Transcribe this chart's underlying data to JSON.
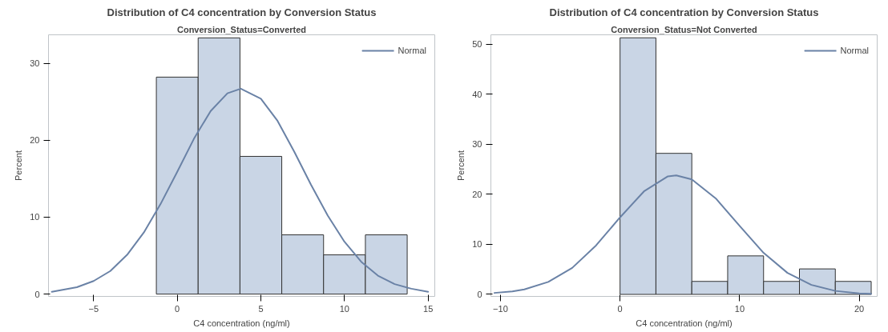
{
  "chart_data": [
    {
      "type": "histogram",
      "title": "Distribution of C4 concentration by Conversion Status",
      "subtitle": "Conversion_Status=Converted",
      "xlabel": "C4 concentration (ng/ml)",
      "ylabel": "Percent",
      "bins": [
        -1.25,
        1.25,
        3.75,
        6.25,
        8.75,
        11.25,
        13.75
      ],
      "values": [
        28.2,
        33.3,
        17.9,
        7.7,
        5.1,
        7.7
      ],
      "color": "#c9d5e5",
      "series": [
        {
          "name": "Normal",
          "type": "line",
          "color": "#6a82a6",
          "x": [
            -7.5,
            -6,
            -5,
            -4,
            -3,
            -2,
            -1,
            0,
            1,
            2,
            3,
            3.8,
            5,
            6,
            7,
            8,
            9,
            10,
            11,
            12,
            13,
            14,
            15
          ],
          "values": [
            0.3,
            0.9,
            1.7,
            3.0,
            5.1,
            8.0,
            11.7,
            15.9,
            20.2,
            23.8,
            26.1,
            26.7,
            25.4,
            22.5,
            18.5,
            14.2,
            10.2,
            6.8,
            4.2,
            2.4,
            1.3,
            0.7,
            0.3
          ]
        }
      ],
      "xlim": [
        -7.7,
        15.4
      ],
      "ylim": [
        -0.3,
        33.7
      ],
      "xticks": [
        -5,
        0,
        5,
        10,
        15
      ],
      "yticks": [
        0,
        10,
        20,
        30
      ],
      "grid": false,
      "legend": "top right"
    },
    {
      "type": "histogram",
      "title": "Distribution of C4 concentration by Conversion Status",
      "subtitle": "Conversion_Status=Not Converted",
      "xlabel": "C4 concentration (ng/ml)",
      "ylabel": "Percent",
      "bins": [
        0,
        3,
        6,
        9,
        12,
        15,
        18,
        21
      ],
      "values": [
        51.3,
        28.2,
        2.6,
        7.7,
        2.6,
        5.1,
        2.6
      ],
      "color": "#c9d5e5",
      "series": [
        {
          "name": "Normal",
          "type": "line",
          "color": "#6a82a6",
          "x": [
            -10.5,
            -9,
            -8,
            -6,
            -4,
            -2,
            0,
            2,
            4,
            4.7,
            6,
            8,
            10,
            12,
            14,
            16,
            18,
            20,
            21
          ],
          "values": [
            0.3,
            0.6,
            1.0,
            2.5,
            5.3,
            9.8,
            15.4,
            20.6,
            23.6,
            23.8,
            23.0,
            19.2,
            13.7,
            8.3,
            4.3,
            1.9,
            0.7,
            0.2,
            0.1
          ]
        }
      ],
      "xlim": [
        -10.8,
        21.5
      ],
      "ylim": [
        -0.4,
        51.9
      ],
      "xticks": [
        -10,
        0,
        10,
        20
      ],
      "yticks": [
        0,
        10,
        20,
        30,
        40,
        50
      ],
      "grid": false,
      "legend": "top right"
    }
  ]
}
